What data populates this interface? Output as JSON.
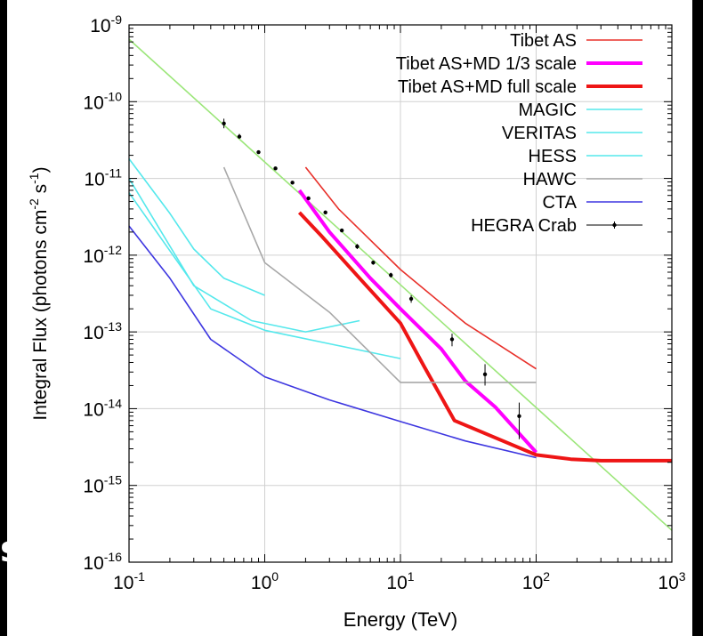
{
  "edge_fragment": "s",
  "chart_data": {
    "type": "line",
    "title": "",
    "xlabel": "Energy (TeV)",
    "ylabel_parts": [
      "Integral Flux (photons cm",
      "-2",
      " s",
      "-1",
      ")"
    ],
    "xscale": "log",
    "yscale": "log",
    "xlim": [
      0.1,
      1000
    ],
    "ylim": [
      1e-16,
      1e-09
    ],
    "grid": true,
    "legend_position": "top-right",
    "x_ticks": [
      {
        "base": "10",
        "exp": "-1"
      },
      {
        "base": "10",
        "exp": "0"
      },
      {
        "base": "10",
        "exp": "1"
      },
      {
        "base": "10",
        "exp": "2"
      },
      {
        "base": "10",
        "exp": "3"
      }
    ],
    "y_ticks": [
      {
        "base": "10",
        "exp": "-16"
      },
      {
        "base": "10",
        "exp": "-15"
      },
      {
        "base": "10",
        "exp": "-14"
      },
      {
        "base": "10",
        "exp": "-13"
      },
      {
        "base": "10",
        "exp": "-12"
      },
      {
        "base": "10",
        "exp": "-11"
      },
      {
        "base": "10",
        "exp": "-10"
      },
      {
        "base": "10",
        "exp": "-9"
      }
    ],
    "series": [
      {
        "name": "Tibet AS",
        "color": "#e8302a",
        "style": "thin",
        "points": [
          [
            2,
            1.4e-11
          ],
          [
            3.5,
            4e-12
          ],
          [
            10,
            6.5e-13
          ],
          [
            30,
            1.3e-13
          ],
          [
            100,
            3.3e-14
          ]
        ]
      },
      {
        "name": "Tibet AS+MD 1/3 scale",
        "color": "#ff00ff",
        "style": "thick",
        "points": [
          [
            1.8,
            7e-12
          ],
          [
            3,
            2e-12
          ],
          [
            6,
            5e-13
          ],
          [
            10,
            2e-13
          ],
          [
            20,
            6e-14
          ],
          [
            30,
            2.3e-14
          ],
          [
            50,
            1.05e-14
          ],
          [
            100,
            2.7e-15
          ]
        ]
      },
      {
        "name": "Tibet AS+MD full scale",
        "color": "#ee1515",
        "style": "thick",
        "points": [
          [
            1.8,
            3.6e-12
          ],
          [
            2.6,
            1.8e-12
          ],
          [
            5,
            5e-13
          ],
          [
            10,
            1.3e-13
          ],
          [
            15,
            3.5e-14
          ],
          [
            25,
            7e-15
          ],
          [
            100,
            2.5e-15
          ],
          [
            180,
            2.2e-15
          ],
          [
            300,
            2.1e-15
          ],
          [
            1000,
            2.1e-15
          ]
        ]
      },
      {
        "name": "MAGIC",
        "color": "#55e8ec",
        "style": "thin",
        "points": [
          [
            0.1,
            1.8e-11
          ],
          [
            0.2,
            3.5e-12
          ],
          [
            0.3,
            1.2e-12
          ],
          [
            0.5,
            5e-13
          ],
          [
            1,
            3e-13
          ]
        ]
      },
      {
        "name": "VERITAS",
        "color": "#55e8ec",
        "style": "thin",
        "points": [
          [
            0.1,
            1e-11
          ],
          [
            0.3,
            4e-13
          ],
          [
            0.8,
            1.4e-13
          ],
          [
            2,
            1e-13
          ],
          [
            5,
            1.4e-13
          ]
        ]
      },
      {
        "name": "HESS",
        "color": "#55e8ec",
        "style": "thin",
        "points": [
          [
            0.1,
            6.5e-12
          ],
          [
            0.4,
            2e-13
          ],
          [
            1,
            1.05e-13
          ],
          [
            3,
            7e-14
          ],
          [
            10,
            4.5e-14
          ]
        ]
      },
      {
        "name": "HAWC",
        "color": "#a8a8a8",
        "style": "thin",
        "points": [
          [
            0.5,
            1.4e-11
          ],
          [
            1,
            8e-13
          ],
          [
            3,
            1.8e-13
          ],
          [
            10,
            2.2e-14
          ],
          [
            100,
            2.2e-14
          ]
        ]
      },
      {
        "name": "CTA",
        "color": "#3e37e0",
        "style": "thin",
        "points": [
          [
            0.1,
            2.4e-12
          ],
          [
            0.2,
            5e-13
          ],
          [
            0.4,
            8e-14
          ],
          [
            1,
            2.6e-14
          ],
          [
            3,
            1.3e-14
          ],
          [
            10,
            6.8e-15
          ],
          [
            30,
            3.8e-15
          ],
          [
            100,
            2.3e-15
          ]
        ]
      },
      {
        "name": "HEGRA Crab",
        "color": "#888888",
        "style": "errorbars",
        "points": [
          [
            0.5,
            5.2e-11
          ],
          [
            0.65,
            3.5e-11
          ],
          [
            0.9,
            2.2e-11
          ],
          [
            1.2,
            1.35e-11
          ],
          [
            1.6,
            8.8e-12
          ],
          [
            2.1,
            5.5e-12
          ],
          [
            2.8,
            3.6e-12
          ],
          [
            3.7,
            2.1e-12
          ],
          [
            4.8,
            1.3e-12
          ],
          [
            6.3,
            8e-13
          ],
          [
            8.5,
            5.5e-13
          ],
          [
            12,
            2.7e-13
          ],
          [
            24,
            8e-14
          ],
          [
            42,
            2.8e-14
          ],
          [
            75,
            8e-15
          ]
        ],
        "err_low": [
          4.5e-11,
          3.3e-11,
          2.1e-11,
          1.3e-11,
          8.5e-12,
          5.3e-12,
          3.4e-12,
          2e-12,
          1.2e-12,
          7.5e-13,
          5.1e-13,
          2.4e-13,
          6.5e-14,
          2e-14,
          4e-15
        ],
        "err_high": [
          6e-11,
          3.8e-11,
          2.3e-11,
          1.4e-11,
          9.1e-12,
          5.7e-12,
          3.8e-12,
          2.2e-12,
          1.4e-12,
          8.5e-13,
          5.9e-13,
          3e-13,
          9.5e-14,
          3.8e-14,
          1.2e-14
        ]
      },
      {
        "name": "",
        "color": "#9ce67a",
        "style": "fit",
        "points": [
          [
            0.1,
            6.5e-10
          ],
          [
            1000,
            2.6e-16
          ]
        ]
      }
    ]
  }
}
